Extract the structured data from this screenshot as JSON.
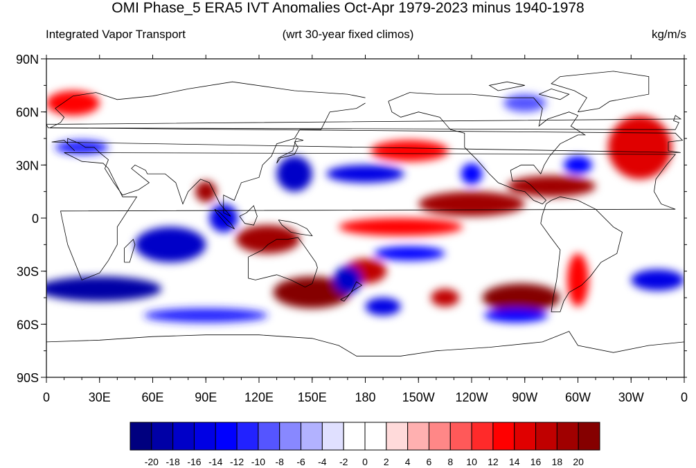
{
  "title": "OMI Phase_5 ERA5 IVT Anomalies Oct-Apr 1979-2023 minus 1940-1978",
  "subtitle_left": "Integrated Vapor Transport",
  "subtitle_center": "(wrt 30-year fixed climos)",
  "subtitle_right": "kg/m/s",
  "map": {
    "projection": "cylindrical equidistant",
    "lon_range": [
      0,
      360
    ],
    "lat_range": [
      -90,
      90
    ],
    "lat_tick_labels": [
      "90N",
      "60N",
      "30N",
      "0",
      "30S",
      "60S",
      "90S"
    ],
    "lat_tick_values": [
      90,
      60,
      30,
      0,
      -30,
      -60,
      -90
    ],
    "lon_tick_labels": [
      "0",
      "30E",
      "60E",
      "90E",
      "120E",
      "150E",
      "180",
      "150W",
      "120W",
      "90W",
      "60W",
      "30W",
      "0"
    ],
    "lon_tick_values": [
      0,
      30,
      60,
      90,
      120,
      150,
      180,
      210,
      240,
      270,
      300,
      330,
      360
    ],
    "ocean_color": "#ffffff",
    "coast_color": "#000000"
  },
  "colorbar": {
    "colors": [
      "#00007f",
      "#0000a6",
      "#0000c8",
      "#0000e4",
      "#0000ff",
      "#2222ff",
      "#5555ff",
      "#8888ff",
      "#b2b2ff",
      "#e0e0ff",
      "#ffffff",
      "#ffffff",
      "#ffdada",
      "#ffb0b0",
      "#ff8787",
      "#ff5959",
      "#ff2a2a",
      "#ff0000",
      "#e00000",
      "#c00000",
      "#a00000",
      "#850000"
    ],
    "tick_labels": [
      "-20",
      "-18",
      "-16",
      "-14",
      "-12",
      "-10",
      "-8",
      "-6",
      "-4",
      "-2",
      "0",
      "2",
      "4",
      "6",
      "8",
      "10",
      "12",
      "14",
      "16",
      "18",
      "20"
    ]
  },
  "anomaly_features": [
    {
      "type": "pos",
      "lon": 150,
      "lat": -42,
      "rlon": 22,
      "rlat": 9,
      "level": 20
    },
    {
      "type": "pos",
      "lon": 268,
      "lat": -45,
      "rlon": 22,
      "rlat": 8,
      "level": 20
    },
    {
      "type": "pos",
      "lon": 285,
      "lat": 18,
      "rlon": 25,
      "rlat": 6,
      "level": 18
    },
    {
      "type": "pos",
      "lon": 240,
      "lat": 8,
      "rlon": 30,
      "rlat": 7,
      "level": 18
    },
    {
      "type": "pos",
      "lon": 125,
      "lat": -12,
      "rlon": 18,
      "rlat": 8,
      "level": 18
    },
    {
      "type": "pos",
      "lon": 335,
      "lat": 40,
      "rlon": 18,
      "rlat": 18,
      "level": 14
    },
    {
      "type": "pos",
      "lon": 205,
      "lat": 38,
      "rlon": 22,
      "rlat": 6,
      "level": 12
    },
    {
      "type": "pos",
      "lon": 90,
      "lat": 15,
      "rlon": 6,
      "rlat": 6,
      "level": 18
    },
    {
      "type": "pos",
      "lon": 200,
      "lat": -5,
      "rlon": 35,
      "rlat": 5,
      "level": 12
    },
    {
      "type": "pos",
      "lon": 300,
      "lat": -35,
      "rlon": 6,
      "rlat": 15,
      "level": 12
    },
    {
      "type": "pos",
      "lon": 15,
      "lat": 65,
      "rlon": 15,
      "rlat": 7,
      "level": 12
    },
    {
      "type": "pos",
      "lon": 180,
      "lat": -30,
      "rlon": 12,
      "rlat": 7,
      "level": 16
    },
    {
      "type": "pos",
      "lon": 225,
      "lat": -45,
      "rlon": 8,
      "rlat": 5,
      "level": 16
    },
    {
      "type": "neg",
      "lon": 30,
      "lat": -40,
      "rlon": 35,
      "rlat": 7,
      "level": 18
    },
    {
      "type": "neg",
      "lon": 70,
      "lat": -15,
      "rlon": 20,
      "rlat": 10,
      "level": 16
    },
    {
      "type": "neg",
      "lon": 140,
      "lat": 25,
      "rlon": 10,
      "rlat": 10,
      "level": 16
    },
    {
      "type": "neg",
      "lon": 180,
      "lat": 25,
      "rlon": 22,
      "rlat": 5,
      "level": 14
    },
    {
      "type": "neg",
      "lon": 100,
      "lat": 0,
      "rlon": 8,
      "rlat": 8,
      "level": 14
    },
    {
      "type": "neg",
      "lon": 265,
      "lat": -55,
      "rlon": 18,
      "rlat": 4,
      "level": 12
    },
    {
      "type": "neg",
      "lon": 345,
      "lat": -35,
      "rlon": 15,
      "rlat": 6,
      "level": 14
    },
    {
      "type": "neg",
      "lon": 205,
      "lat": -20,
      "rlon": 20,
      "rlat": 4,
      "level": 12
    },
    {
      "type": "neg",
      "lon": 170,
      "lat": -35,
      "rlon": 8,
      "rlat": 8,
      "level": 16
    },
    {
      "type": "neg",
      "lon": 190,
      "lat": -50,
      "rlon": 10,
      "rlat": 5,
      "level": 14
    },
    {
      "type": "neg",
      "lon": 240,
      "lat": 25,
      "rlon": 6,
      "rlat": 6,
      "level": 12
    },
    {
      "type": "neg",
      "lon": 300,
      "lat": 30,
      "rlon": 8,
      "rlat": 5,
      "level": 12
    },
    {
      "type": "neg",
      "lon": 20,
      "lat": 40,
      "rlon": 15,
      "rlat": 4,
      "level": 10
    },
    {
      "type": "neg",
      "lon": 270,
      "lat": 65,
      "rlon": 12,
      "rlat": 5,
      "level": 8
    },
    {
      "type": "neg",
      "lon": 90,
      "lat": -55,
      "rlon": 35,
      "rlat": 4,
      "level": 10
    }
  ]
}
